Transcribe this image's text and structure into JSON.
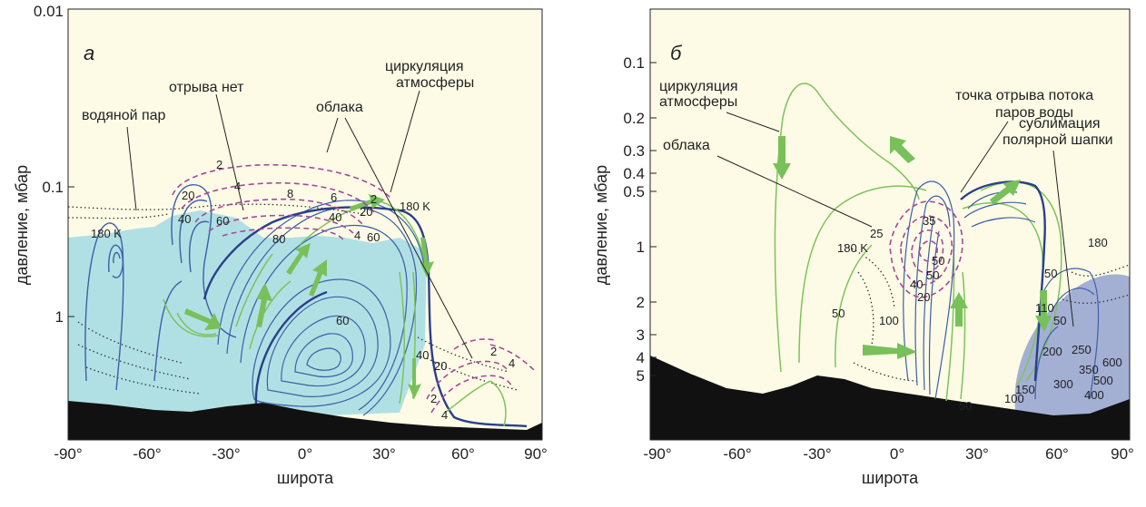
{
  "colors": {
    "panel_background": "#fdfbe6",
    "ice_cloud_fill": "#a9dde3",
    "polar_fill": "#9aa6d2",
    "ground": "#111111",
    "streamline_blue": "#3b5fa8",
    "streamline_green": "#7cc35a",
    "arrow_green": "#78c05a",
    "cloud_dash_magenta": "#a5489a",
    "vapor_dotted": "#333333"
  },
  "chart_data": [
    {
      "panel": "а",
      "type": "contour",
      "xlabel": "широта",
      "ylabel": "давление, мбар",
      "xlim": [
        -90,
        90
      ],
      "x_ticks": [
        "-90°",
        "-60°",
        "-30°",
        "0°",
        "30°",
        "60°",
        "90°"
      ],
      "y_scale": "log",
      "ylim": [
        3,
        0.01
      ],
      "y_ticks": [
        "0.01",
        "0.1",
        "1"
      ],
      "annotations": [
        "водяной пар",
        "отрыва нет",
        "облака",
        "циркуляция атмосферы"
      ],
      "contour_labels": [
        "180 K",
        "2",
        "4",
        "20",
        "40",
        "60",
        "8",
        "6",
        "2",
        "180 K",
        "40",
        "20",
        "4",
        "60",
        "80",
        "60",
        "40",
        "20",
        "2",
        "4",
        "4",
        "2"
      ]
    },
    {
      "panel": "б",
      "type": "contour",
      "xlabel": "широта",
      "ylabel": "давление, мбар",
      "xlim": [
        -90,
        90
      ],
      "x_ticks": [
        "-90°",
        "-60°",
        "-30°",
        "0°",
        "30°",
        "60°",
        "90°"
      ],
      "y_scale": "log",
      "ylim": [
        8,
        0.07
      ],
      "y_ticks": [
        "0.1",
        "0.2",
        "0.3",
        "0.4",
        "0.5",
        "1",
        "2",
        "3",
        "4",
        "5"
      ],
      "annotations": [
        "циркуляция атмосферы",
        "облака",
        "точка отрыва потока паров воды",
        "сублимация полярной шапки"
      ],
      "contour_labels": [
        "180 K",
        "25",
        "35",
        "50",
        "50",
        "20",
        "40",
        "50",
        "100",
        "180",
        "50",
        "110",
        "50",
        "250",
        "200",
        "300",
        "350",
        "500",
        "600",
        "400",
        "150",
        "100",
        "50"
      ]
    }
  ],
  "panel_a": {
    "letter": "а",
    "ylabel": "давление, мбар",
    "xlabel": "широта",
    "y_ticks": [
      "0.01",
      "0.1",
      "1"
    ],
    "x_ticks": [
      "-90°",
      "-60°",
      "-30°",
      "0°",
      "30°",
      "60°",
      "90°"
    ],
    "ann_vapor": "водяной пар",
    "ann_no_detach": "отрыва нет",
    "ann_clouds": "облака",
    "ann_circ_1": "циркуляция",
    "ann_circ_2": "атмосферы",
    "contour_labels": [
      "180 K",
      "2",
      "4",
      "20",
      "40",
      "60",
      "8",
      "6",
      "2",
      "180 K",
      "40",
      "20",
      "4",
      "60",
      "80",
      "60",
      "40",
      "20",
      "2",
      "4",
      "4",
      "2"
    ]
  },
  "panel_b": {
    "letter": "б",
    "ylabel": "давление, мбар",
    "xlabel": "широта",
    "y_ticks": [
      "0.1",
      "0.2",
      "0.3",
      "0.4",
      "0.5",
      "1",
      "2",
      "3",
      "4",
      "5"
    ],
    "x_ticks": [
      "-90°",
      "-60°",
      "-30°",
      "0°",
      "30°",
      "60°",
      "90°"
    ],
    "ann_circ_1": "циркуляция",
    "ann_circ_2": "атмосферы",
    "ann_clouds": "облака",
    "ann_detach_1": "точка отрыва потока",
    "ann_detach_2": "паров воды",
    "ann_subl_1": "сублимация",
    "ann_subl_2": "полярной шапки",
    "contour_labels": [
      "180 K",
      "25",
      "35",
      "50",
      "50",
      "20",
      "40",
      "50",
      "100",
      "180",
      "50",
      "110",
      "50",
      "250",
      "200",
      "300",
      "350",
      "500",
      "600",
      "400",
      "150",
      "100",
      "50"
    ]
  }
}
